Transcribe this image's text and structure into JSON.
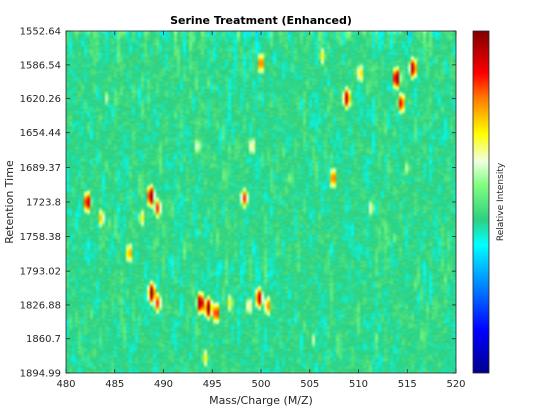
{
  "chart_data": {
    "type": "heatmap",
    "title": "Serine Treatment (Enhanced)",
    "xlabel": "Mass/Charge (M/Z)",
    "ylabel": "Retention Time",
    "colorbar_label": "Relative Intensity",
    "colormap": "jet",
    "xlim": [
      480,
      520
    ],
    "ylim": [
      1552.64,
      1894.99
    ],
    "y_reversed": true,
    "x_ticks": [
      "480",
      "485",
      "490",
      "495",
      "500",
      "505",
      "510",
      "515",
      "520"
    ],
    "x_tick_values": [
      480,
      485,
      490,
      495,
      500,
      505,
      510,
      515,
      520
    ],
    "y_ticks": [
      "1552.64",
      "1586.54",
      "1620.26",
      "1654.44",
      "1689.37",
      "1723.8",
      "1758.38",
      "1793.02",
      "1826.88",
      "1860.7",
      "1894.99"
    ],
    "y_tick_values": [
      1552.64,
      1586.54,
      1620.26,
      1654.44,
      1689.37,
      1723.8,
      1758.38,
      1793.02,
      1826.88,
      1860.7,
      1894.99
    ],
    "background_intensity": 0.45,
    "peaks": [
      {
        "mz": 482.2,
        "rt": 1724,
        "intensity": 0.95
      },
      {
        "mz": 483.6,
        "rt": 1740,
        "intensity": 0.75
      },
      {
        "mz": 486.5,
        "rt": 1775,
        "intensity": 0.8
      },
      {
        "mz": 487.8,
        "rt": 1740,
        "intensity": 0.7
      },
      {
        "mz": 488.7,
        "rt": 1718,
        "intensity": 1.0
      },
      {
        "mz": 489.4,
        "rt": 1730,
        "intensity": 0.85
      },
      {
        "mz": 488.8,
        "rt": 1815,
        "intensity": 1.0
      },
      {
        "mz": 489.4,
        "rt": 1825,
        "intensity": 0.85
      },
      {
        "mz": 493.8,
        "rt": 1825,
        "intensity": 1.0
      },
      {
        "mz": 494.6,
        "rt": 1830,
        "intensity": 1.0
      },
      {
        "mz": 495.4,
        "rt": 1835,
        "intensity": 0.9
      },
      {
        "mz": 494.3,
        "rt": 1880,
        "intensity": 0.7
      },
      {
        "mz": 496.8,
        "rt": 1825,
        "intensity": 0.7
      },
      {
        "mz": 498.3,
        "rt": 1720,
        "intensity": 0.85
      },
      {
        "mz": 498.8,
        "rt": 1828,
        "intensity": 0.7
      },
      {
        "mz": 499.8,
        "rt": 1820,
        "intensity": 0.95
      },
      {
        "mz": 500.7,
        "rt": 1828,
        "intensity": 0.8
      },
      {
        "mz": 500.0,
        "rt": 1585,
        "intensity": 0.85
      },
      {
        "mz": 499.1,
        "rt": 1668,
        "intensity": 0.7
      },
      {
        "mz": 493.5,
        "rt": 1668,
        "intensity": 0.65
      },
      {
        "mz": 506.3,
        "rt": 1578,
        "intensity": 0.7
      },
      {
        "mz": 507.4,
        "rt": 1700,
        "intensity": 0.85
      },
      {
        "mz": 508.8,
        "rt": 1620,
        "intensity": 0.95
      },
      {
        "mz": 510.2,
        "rt": 1595,
        "intensity": 0.75
      },
      {
        "mz": 511.3,
        "rt": 1730,
        "intensity": 0.65
      },
      {
        "mz": 513.9,
        "rt": 1600,
        "intensity": 1.0
      },
      {
        "mz": 514.4,
        "rt": 1625,
        "intensity": 0.9
      },
      {
        "mz": 515.6,
        "rt": 1590,
        "intensity": 0.95
      },
      {
        "mz": 515.0,
        "rt": 1690,
        "intensity": 0.6
      },
      {
        "mz": 513.8,
        "rt": 1760,
        "intensity": 0.55
      },
      {
        "mz": 505.4,
        "rt": 1862,
        "intensity": 0.6
      },
      {
        "mz": 511.8,
        "rt": 1860,
        "intensity": 0.55
      },
      {
        "mz": 503.0,
        "rt": 1700,
        "intensity": 0.55
      },
      {
        "mz": 484.2,
        "rt": 1620,
        "intensity": 0.6
      }
    ]
  }
}
